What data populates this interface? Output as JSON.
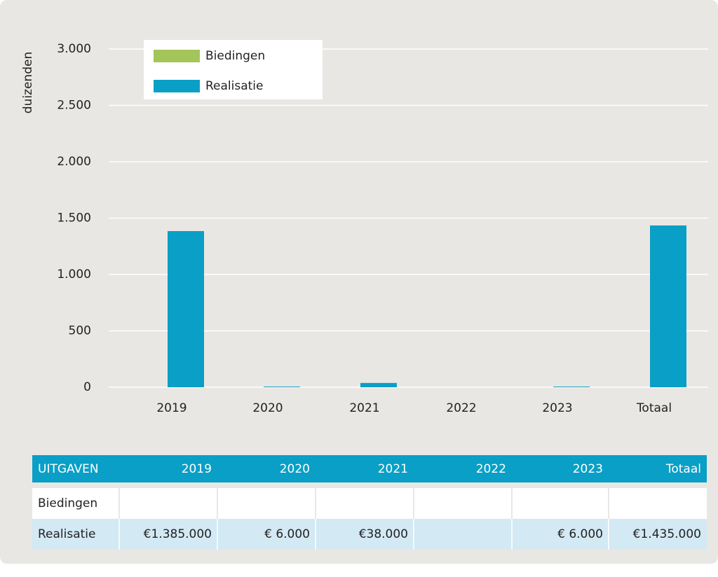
{
  "chart_data": {
    "type": "bar",
    "y_label": "duizenden",
    "categories": [
      "2019",
      "2020",
      "2021",
      "2022",
      "2023",
      "Totaal"
    ],
    "series": [
      {
        "name": "Biedingen",
        "color": "#a3c55a",
        "values": [
          null,
          null,
          null,
          null,
          null,
          null
        ]
      },
      {
        "name": "Realisatie",
        "color": "#0a9fc6",
        "values": [
          1385,
          6,
          38,
          null,
          6,
          1435
        ]
      }
    ],
    "ylim": [
      0,
      3000
    ],
    "yticks": [
      0,
      500,
      {
        "value": 1000,
        "label": "1.000"
      },
      {
        "value": 1500,
        "label": "1.500"
      },
      {
        "value": 2000,
        "label": "2.000"
      },
      {
        "value": 2500,
        "label": "2.500"
      },
      {
        "value": 3000,
        "label": "3.000"
      }
    ],
    "grid": true
  },
  "table": {
    "header": "UITGAVEN",
    "rows": [
      {
        "label": "Biedingen",
        "cells": [
          null,
          null,
          null,
          null,
          null,
          null
        ]
      },
      {
        "label": "Realisatie",
        "cells": [
          "€1.385.000",
          "€ 6.000",
          "€38.000",
          null,
          "€ 6.000",
          "€1.435.000"
        ]
      }
    ]
  }
}
